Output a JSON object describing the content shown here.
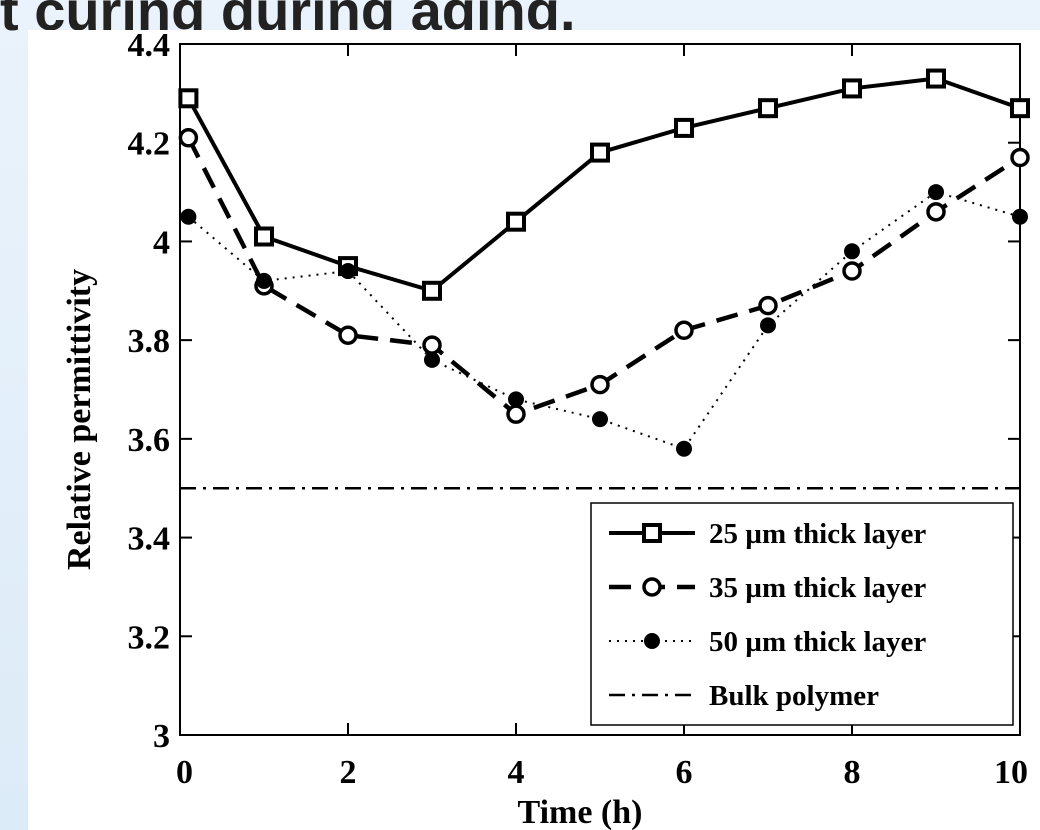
{
  "page": {
    "title": "t curing during aging."
  },
  "chart_data": {
    "type": "line",
    "xlabel": "Time (h)",
    "ylabel": "Relative permittivity",
    "xlim": [
      0,
      10
    ],
    "ylim": [
      3,
      4.4
    ],
    "xticks": [
      "0",
      "2",
      "4",
      "6",
      "8",
      "10"
    ],
    "yticks": [
      "3",
      "3.2",
      "3.4",
      "3.6",
      "3.8",
      "4",
      "4.2",
      "4.4"
    ],
    "grid": false,
    "legend_position": "bottom-right",
    "series": [
      {
        "name": "25 µm thick layer",
        "style": "solid",
        "marker": "square",
        "x": [
          0.1,
          1,
          2,
          3,
          4,
          5,
          6,
          7,
          8,
          9,
          10
        ],
        "y": [
          4.29,
          4.01,
          3.95,
          3.9,
          4.04,
          4.18,
          4.23,
          4.27,
          4.31,
          4.33,
          4.27
        ]
      },
      {
        "name": "35 µm thick layer",
        "style": "dashed",
        "marker": "circle-open",
        "x": [
          0.1,
          1,
          2,
          3,
          4,
          5,
          6,
          7,
          8,
          9,
          10
        ],
        "y": [
          4.21,
          3.91,
          3.81,
          3.79,
          3.65,
          3.71,
          3.82,
          3.87,
          3.94,
          4.06,
          4.17
        ]
      },
      {
        "name": "50 µm thick layer",
        "style": "dotted",
        "marker": "circle-filled",
        "x": [
          0.1,
          1,
          2,
          3,
          4,
          5,
          6,
          7,
          8,
          9,
          10
        ],
        "y": [
          4.05,
          3.92,
          3.94,
          3.76,
          3.68,
          3.64,
          3.58,
          3.83,
          3.98,
          4.1,
          4.05
        ]
      },
      {
        "name": "Bulk polymer",
        "style": "dashdot",
        "marker": "none",
        "x": [
          0,
          10
        ],
        "y": [
          3.5,
          3.5
        ]
      }
    ]
  }
}
